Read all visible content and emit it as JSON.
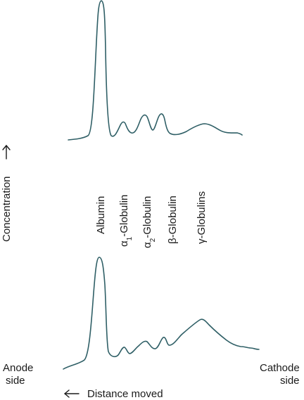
{
  "labels": {
    "concentration": "Concentration",
    "albumin": "Albumin",
    "alpha1_prefix": "α",
    "alpha1_sub": "1",
    "alpha1_suffix": "-Globulin",
    "alpha2_prefix": "α",
    "alpha2_sub": "2",
    "alpha2_suffix": "-Globulin",
    "beta": "β-Globulin",
    "gamma": "γ-Globulins",
    "anode_line1": "Anode",
    "anode_line2": "side",
    "cathode_line1": "Cathode",
    "cathode_line2": "side",
    "distance": "Distance moved"
  },
  "colors": {
    "trace": "#2f5f66",
    "text": "#1a1a1a"
  }
}
